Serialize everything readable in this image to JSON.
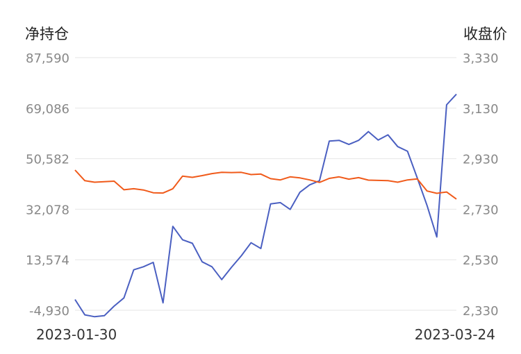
{
  "chart_data": {
    "type": "line",
    "left_axis_title": "净持仓",
    "right_axis_title": "收盘价",
    "left_ticks": [
      "87,590",
      "69,086",
      "50,582",
      "32,078",
      "13,574",
      "-4,930"
    ],
    "right_ticks": [
      "3,330",
      "3,130",
      "2,930",
      "2,730",
      "2,530",
      "2,330"
    ],
    "left_range": [
      -4930,
      87590
    ],
    "right_range": [
      2330,
      3330
    ],
    "x_start_label": "2023-01-30",
    "x_end_label": "2023-03-24",
    "grid": true,
    "series": [
      {
        "axis": "left",
        "color": "#4a5fc1",
        "values": [
          -1000,
          -6600,
          -7300,
          -6900,
          -3400,
          -400,
          9900,
          11000,
          12600,
          -2200,
          25800,
          20900,
          19600,
          12800,
          11000,
          6300,
          10800,
          15000,
          19800,
          17700,
          34000,
          34500,
          32000,
          38300,
          41000,
          42500,
          57000,
          57300,
          55800,
          57300,
          60500,
          57400,
          59300,
          55000,
          53300,
          43500,
          33400,
          21900,
          70300,
          74200
        ]
      },
      {
        "axis": "right",
        "color": "#f05a1a",
        "values": [
          2885,
          2843,
          2837,
          2839,
          2841,
          2807,
          2811,
          2806,
          2795,
          2794,
          2811,
          2861,
          2856,
          2863,
          2871,
          2876,
          2875,
          2876,
          2867,
          2869,
          2851,
          2846,
          2858,
          2854,
          2846,
          2836,
          2852,
          2858,
          2849,
          2855,
          2845,
          2844,
          2843,
          2837,
          2846,
          2850,
          2802,
          2793,
          2798,
          2770
        ]
      }
    ]
  }
}
